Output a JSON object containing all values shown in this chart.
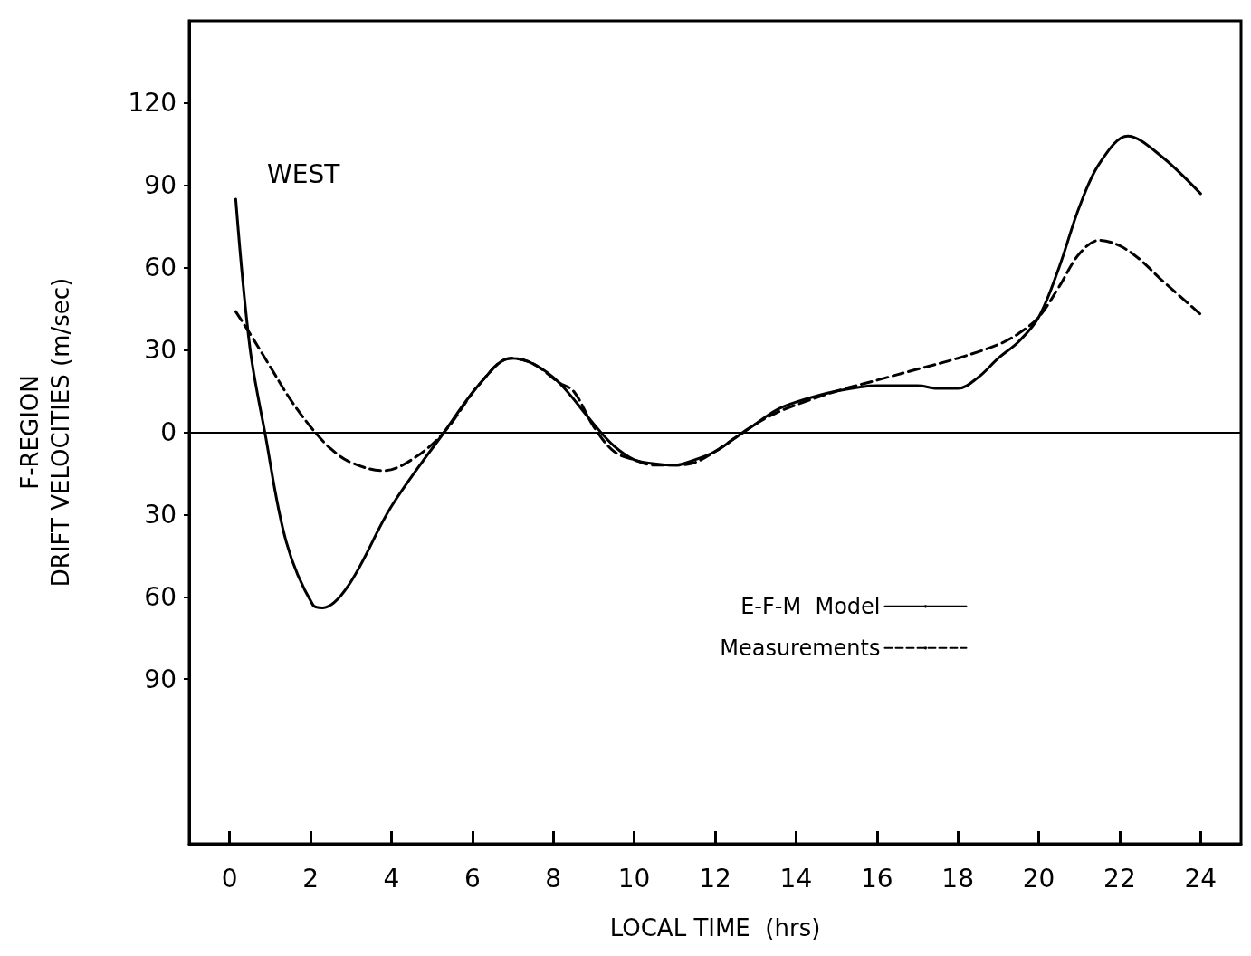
{
  "chart_data": {
    "type": "line",
    "xlabel": "LOCAL TIME  (hrs)",
    "ylabel": "F-REGION\nDRIFT VELOCITIES (m/sec)",
    "annotations": [
      "WEST"
    ],
    "xlim": [
      -1,
      25
    ],
    "xticks": [
      0,
      2,
      4,
      6,
      8,
      10,
      12,
      14,
      16,
      18,
      20,
      22,
      24
    ],
    "ylim": [
      -150,
      150
    ],
    "yticks": [
      {
        "value": -90,
        "label": "90"
      },
      {
        "value": -60,
        "label": "60"
      },
      {
        "value": -30,
        "label": "30"
      },
      0,
      30,
      60,
      90,
      120
    ],
    "grid": false,
    "legend": "right",
    "marker": "none",
    "ref_lines": [
      {
        "axis": "y",
        "value": 0,
        "color": "#000000"
      }
    ],
    "series": [
      {
        "name": "E-F-M  Model",
        "color": "#000000",
        "line_style": "solid",
        "x": [
          0.15,
          0.5,
          0.87,
          1.4,
          2.06,
          2.3,
          2.93,
          4.0,
          5.3,
          6.2,
          6.95,
          7.5,
          8.15,
          9,
          9.5,
          10,
          10.5,
          11,
          11.5,
          12,
          12.5,
          13,
          13.5,
          14,
          15,
          16,
          17,
          17.5,
          18,
          18.5,
          19,
          19.5,
          20,
          20.5,
          21,
          21.5,
          22.2,
          23,
          24
        ],
        "values": [
          85,
          31,
          0,
          -40,
          -63,
          -64,
          -56,
          -27,
          0,
          18,
          27,
          25,
          18,
          3,
          -5,
          -10,
          -11.5,
          -12,
          -10,
          -7,
          -2,
          3,
          8,
          11,
          15,
          17,
          17,
          16,
          16,
          20,
          27,
          33,
          42,
          60,
          82,
          98,
          108,
          101,
          87
        ]
      },
      {
        "name": "Measurements",
        "color": "#000000",
        "line_style": "dashed",
        "x": [
          0.15,
          0.5,
          1,
          1.5,
          2,
          2.5,
          3,
          3.8,
          4.5,
          5.3,
          6.2,
          6.95,
          7.5,
          8.15,
          8.5,
          9,
          9.5,
          10,
          10.5,
          11,
          11.5,
          12,
          12.5,
          13,
          13.5,
          14,
          15,
          16,
          17,
          18,
          19,
          19.5,
          20,
          20.5,
          21,
          21.5,
          22,
          22.5,
          23,
          24
        ],
        "values": [
          44,
          36,
          24,
          12,
          2,
          -6,
          -11,
          -14,
          -10,
          0,
          18,
          27,
          25,
          18,
          15,
          2,
          -7,
          -10,
          -12,
          -12,
          -11,
          -7,
          -2,
          3,
          7,
          10,
          15,
          19,
          23,
          27,
          32,
          36,
          42,
          53,
          65,
          70,
          68,
          63,
          56,
          43
        ]
      }
    ]
  }
}
